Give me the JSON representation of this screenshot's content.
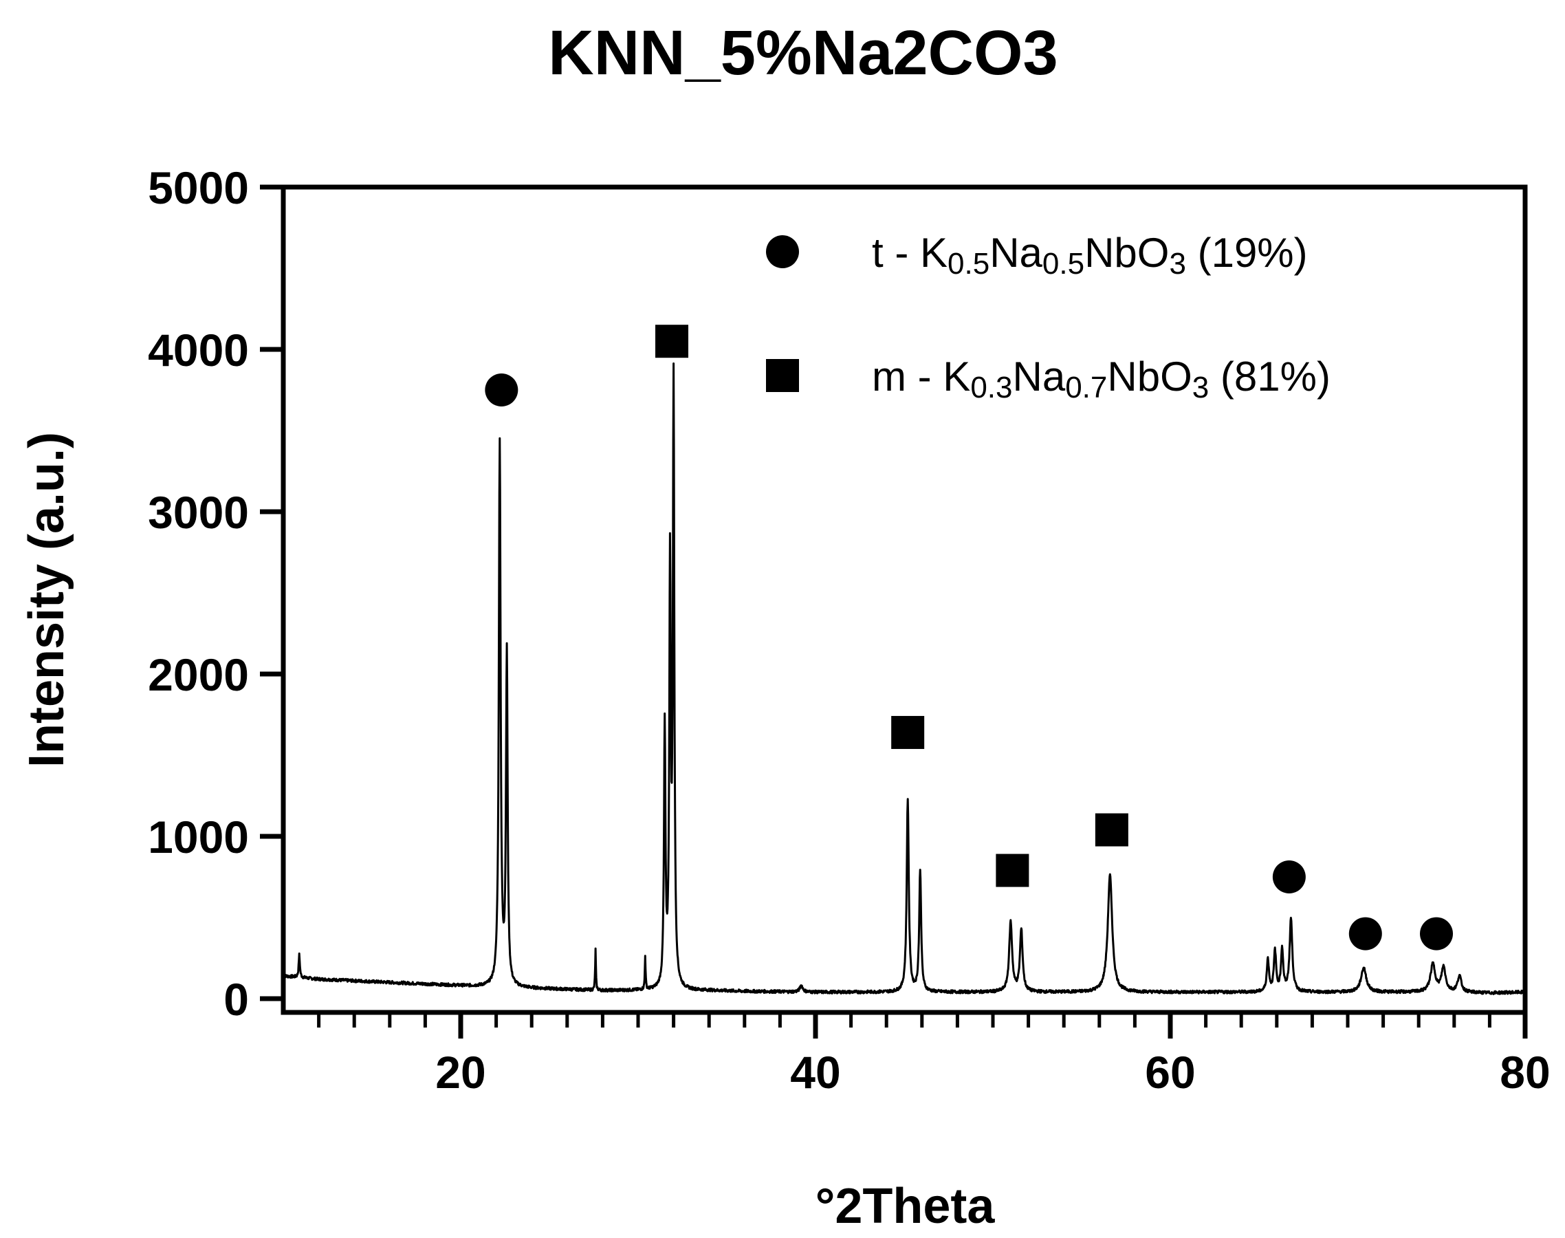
{
  "chart_data": {
    "type": "line",
    "title": "KNN_5%Na2CO3",
    "xlabel": "°2Theta",
    "ylabel": "Intensity (a.u.)",
    "xlim": [
      10,
      80
    ],
    "ylim": [
      0,
      5000
    ],
    "x_ticks": [
      "20",
      "40",
      "60",
      "80"
    ],
    "y_ticks": [
      "0",
      "1000",
      "2000",
      "3000",
      "4000",
      "5000"
    ],
    "grid": false,
    "legend_position": "top-right",
    "legend": [
      {
        "symbol": "circle",
        "prefix": "t - K",
        "sub1": "0.5",
        "mid": "Na",
        "sub2": "0.5",
        "post": "NbO",
        "sub3": "3",
        "suffix": " (19%)"
      },
      {
        "symbol": "square",
        "prefix": "m - K",
        "sub1": "0.3",
        "mid": "Na",
        "sub2": "0.7",
        "post": "NbO",
        "sub3": "3",
        "suffix": " (81%)"
      }
    ],
    "series": [
      {
        "baseline": [
          [
            10,
            140
          ],
          [
            11,
            130
          ],
          [
            12,
            120
          ],
          [
            14,
            110
          ],
          [
            16,
            100
          ],
          [
            18,
            90
          ],
          [
            20,
            80
          ],
          [
            22,
            70
          ],
          [
            25,
            60
          ],
          [
            28,
            50
          ],
          [
            30,
            50
          ],
          [
            34,
            50
          ],
          [
            36,
            45
          ],
          [
            40,
            40
          ],
          [
            44,
            40
          ],
          [
            48,
            40
          ],
          [
            50,
            40
          ],
          [
            54,
            40
          ],
          [
            58,
            40
          ],
          [
            62,
            40
          ],
          [
            64,
            40
          ],
          [
            66,
            40
          ],
          [
            68,
            40
          ],
          [
            70,
            40
          ],
          [
            72,
            40
          ],
          [
            74,
            40
          ],
          [
            76,
            40
          ],
          [
            78,
            35
          ],
          [
            80,
            40
          ]
        ],
        "peaks": [
          [
            10.9,
            140,
            0.08
          ],
          [
            22.2,
            3350,
            0.12
          ],
          [
            22.6,
            2050,
            0.11
          ],
          [
            27.6,
            250,
            0.05
          ],
          [
            30.4,
            210,
            0.05
          ],
          [
            31.5,
            1600,
            0.1
          ],
          [
            31.8,
            2550,
            0.1
          ],
          [
            32.0,
            3700,
            0.1
          ],
          [
            39.2,
            40,
            0.2
          ],
          [
            45.2,
            1180,
            0.14
          ],
          [
            45.9,
            750,
            0.13
          ],
          [
            51.0,
            430,
            0.2
          ],
          [
            51.6,
            380,
            0.18
          ],
          [
            56.6,
            720,
            0.3
          ],
          [
            65.5,
            200,
            0.15
          ],
          [
            65.9,
            250,
            0.15
          ],
          [
            66.3,
            260,
            0.15
          ],
          [
            66.8,
            450,
            0.18
          ],
          [
            70.9,
            150,
            0.35
          ],
          [
            74.8,
            170,
            0.32
          ],
          [
            75.4,
            150,
            0.28
          ],
          [
            76.3,
            100,
            0.25
          ]
        ]
      }
    ],
    "markers": [
      {
        "symbol": "circle",
        "x": 22.3,
        "y": 3750
      },
      {
        "symbol": "square",
        "x": 31.9,
        "y": 4050
      },
      {
        "symbol": "square",
        "x": 45.2,
        "y": 1640
      },
      {
        "symbol": "square",
        "x": 51.1,
        "y": 790
      },
      {
        "symbol": "square",
        "x": 56.7,
        "y": 1040
      },
      {
        "symbol": "circle",
        "x": 66.7,
        "y": 750
      },
      {
        "symbol": "circle",
        "x": 71.0,
        "y": 400
      },
      {
        "symbol": "circle",
        "x": 75.0,
        "y": 400
      }
    ]
  }
}
